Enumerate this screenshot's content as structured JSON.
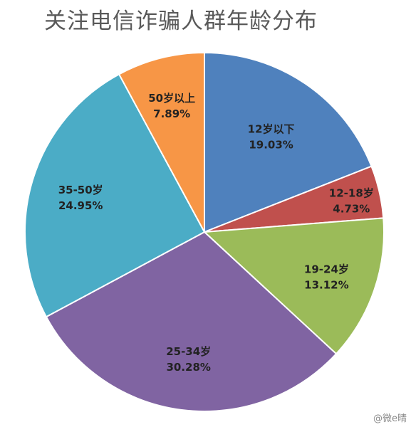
{
  "chart_data": {
    "type": "pie",
    "title": "关注电信诈骗人群年龄分布",
    "start_angle_deg": 0,
    "direction": "clockwise",
    "slices": [
      {
        "label": "12岁以下",
        "value": 19.03,
        "display": "19.03%",
        "color": "#4F81BD"
      },
      {
        "label": "12-18岁",
        "value": 4.73,
        "display": "4.73%",
        "color": "#C0504D"
      },
      {
        "label": "19-24岁",
        "value": 13.12,
        "display": "13.12%",
        "color": "#9BBB59"
      },
      {
        "label": "25-34岁",
        "value": 30.28,
        "display": "30.28%",
        "color": "#8064A2"
      },
      {
        "label": "35-50岁",
        "value": 24.95,
        "display": "24.95%",
        "color": "#4BACC6"
      },
      {
        "label": "50岁以上",
        "value": 7.89,
        "display": "7.89%",
        "color": "#F79646"
      }
    ]
  },
  "watermark": "@微e晴"
}
